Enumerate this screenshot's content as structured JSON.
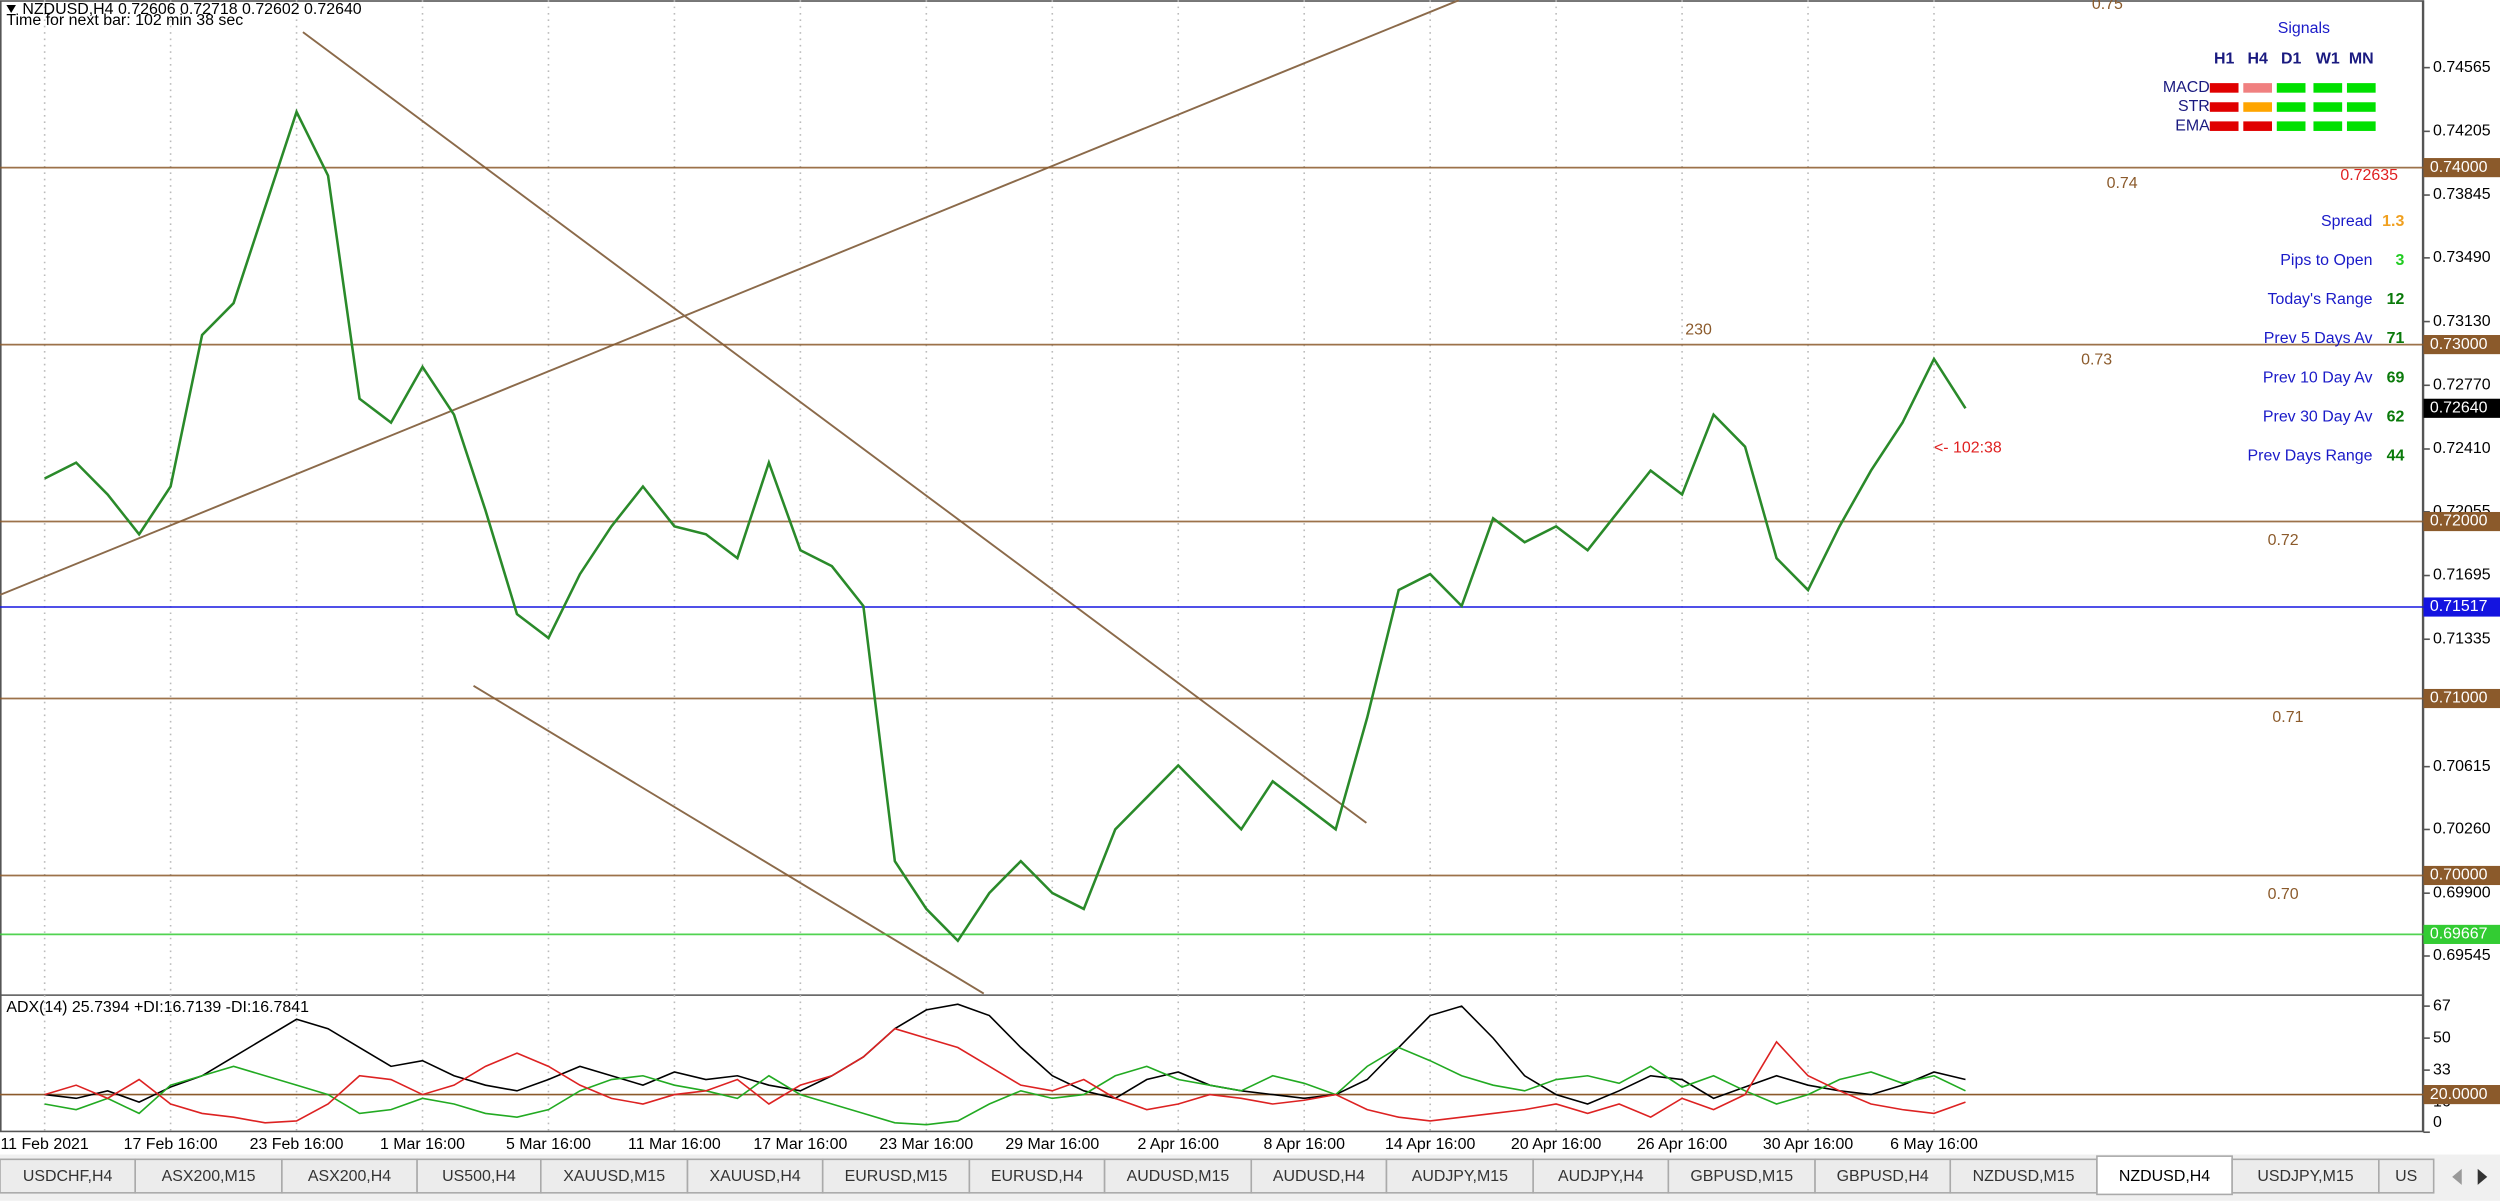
{
  "header": {
    "symbol_line": "NZDUSD,H4  0.72606 0.72718 0.72602 0.72640",
    "timer": "Time for next bar: 102 min 38 sec"
  },
  "chart_data": [
    {
      "type": "line",
      "color": "#2a8a2a",
      "categories": [
        "11 Feb 2021",
        null,
        null,
        null,
        "17 Feb 16:00",
        null,
        null,
        null,
        "23 Feb 16:00",
        null,
        null,
        null,
        "1 Mar 16:00",
        null,
        null,
        null,
        "5 Mar 16:00",
        null,
        null,
        null,
        "11 Mar 16:00",
        null,
        null,
        null,
        "17 Mar 16:00",
        null,
        null,
        null,
        "23 Mar 16:00",
        null,
        null,
        null,
        "29 Mar 16:00",
        null,
        null,
        null,
        "2 Apr 16:00",
        null,
        null,
        null,
        "8 Apr 16:00",
        null,
        null,
        null,
        "14 Apr 16:00",
        null,
        null,
        null,
        "20 Apr 16:00",
        null,
        null,
        null,
        "26 Apr 16:00",
        null,
        null,
        null,
        "30 Apr 16:00",
        null,
        null,
        null,
        "6 May 16:00",
        null
      ],
      "values": [
        0.72243,
        0.72333,
        0.72153,
        0.71928,
        0.72198,
        0.73054,
        0.73234,
        0.73775,
        0.74315,
        0.73955,
        0.72694,
        0.72559,
        0.72874,
        0.72604,
        0.72063,
        0.71477,
        0.71342,
        0.71703,
        0.71973,
        0.72198,
        0.71973,
        0.71928,
        0.71793,
        0.72333,
        0.71838,
        0.71748,
        0.71523,
        0.70081,
        0.69811,
        0.69631,
        0.69901,
        0.70081,
        0.69901,
        0.69811,
        0.70261,
        0.70441,
        0.70622,
        0.70441,
        0.70261,
        0.70532,
        0.70396,
        0.70261,
        0.70892,
        0.71613,
        0.71703,
        0.71523,
        0.72018,
        0.71883,
        0.71973,
        0.71838,
        0.72063,
        0.72288,
        0.72153,
        0.72604,
        0.72423,
        0.71793,
        0.71613,
        0.71973,
        0.72288,
        0.72559,
        0.72919,
        0.7264
      ],
      "ylim": [
        0.69333,
        0.74946
      ],
      "yticks": [
        0.74565,
        0.74205,
        0.73845,
        {
          "value": 0.7349,
          "label": "0.73490"
        },
        {
          "value": 0.7313,
          "label": "0.73130"
        },
        {
          "value": 0.7277,
          "label": "0.72770"
        },
        {
          "value": 0.7241,
          "label": "0.72410"
        },
        0.72055,
        0.71695,
        0.71335,
        0.70615,
        {
          "value": 0.7026,
          "label": "0.70260"
        },
        {
          "value": 0.699,
          "label": "0.69900"
        },
        0.69545
      ],
      "levels": [
        {
          "value": 0.74,
          "label": "0.74000",
          "text": "0.74",
          "color": "#8b5a2b"
        },
        {
          "value": 0.73,
          "label": "0.73000",
          "text": "0.73",
          "color": "#8b5a2b"
        },
        {
          "value": 0.72,
          "label": "0.72000",
          "text": "0.72",
          "color": "#8b5a2b"
        },
        {
          "value": 0.71,
          "label": "0.71000",
          "text": "0.71",
          "color": "#8b5a2b"
        },
        {
          "value": 0.7,
          "label": "0.70000",
          "text": "0.70",
          "color": "#8b5a2b"
        },
        {
          "value": 0.71517,
          "label": "0.71517",
          "color": "#1414e0"
        },
        {
          "value": 0.69667,
          "label": "0.69667",
          "color": "#33cc33"
        }
      ],
      "price_label": {
        "value": 0.7264,
        "label": "0.72640"
      },
      "annotations": [
        "0.75",
        "230",
        "<- 102:38"
      ]
    },
    {
      "type": "line",
      "title": "ADX(14) 25.7394 +DI:16.7139 -DI:16.7841",
      "ylim": [
        0,
        72
      ],
      "yticks": [
        67,
        50,
        33,
        16,
        0
      ],
      "level": {
        "value": 20,
        "label": "20.0000"
      },
      "series": [
        {
          "color": "#000000",
          "values": [
            20,
            18,
            22,
            16,
            24,
            30,
            40,
            50,
            60,
            55,
            45,
            35,
            38,
            30,
            25,
            22,
            28,
            35,
            30,
            25,
            32,
            28,
            30,
            25,
            22,
            30,
            40,
            55,
            65,
            68,
            62,
            45,
            30,
            22,
            18,
            28,
            32,
            25,
            22,
            20,
            18,
            20,
            28,
            45,
            62,
            67,
            50,
            30,
            20,
            15,
            22,
            30,
            28,
            18,
            24,
            30,
            25,
            22,
            20,
            25,
            32,
            28
          ]
        },
        {
          "color": "#22aa22",
          "values": [
            15,
            12,
            18,
            10,
            25,
            30,
            35,
            30,
            25,
            20,
            10,
            12,
            18,
            15,
            10,
            8,
            12,
            22,
            28,
            30,
            25,
            22,
            18,
            30,
            20,
            15,
            10,
            5,
            4,
            6,
            15,
            22,
            18,
            20,
            30,
            35,
            28,
            25,
            22,
            30,
            26,
            20,
            35,
            45,
            38,
            30,
            25,
            22,
            28,
            30,
            26,
            35,
            24,
            30,
            22,
            15,
            20,
            28,
            32,
            26,
            30,
            22
          ]
        },
        {
          "color": "#dd2222",
          "values": [
            20,
            25,
            18,
            28,
            15,
            10,
            8,
            5,
            6,
            15,
            30,
            28,
            20,
            25,
            35,
            42,
            35,
            25,
            18,
            15,
            20,
            22,
            28,
            15,
            25,
            30,
            40,
            55,
            50,
            45,
            35,
            25,
            22,
            28,
            18,
            12,
            15,
            20,
            18,
            15,
            17,
            20,
            12,
            8,
            6,
            8,
            10,
            12,
            15,
            10,
            15,
            8,
            18,
            12,
            20,
            48,
            30,
            22,
            15,
            12,
            10,
            16
          ]
        }
      ]
    }
  ],
  "signals": {
    "title": "Signals",
    "columns": [
      "H1",
      "H4",
      "D1",
      "W1",
      "MN"
    ],
    "rows": [
      {
        "label": "MACD",
        "colors": [
          "#e00000",
          "#f08080",
          "#00e000",
          "#00e000",
          "#00e000"
        ]
      },
      {
        "label": "STR",
        "colors": [
          "#e00000",
          "#ffa500",
          "#00e000",
          "#00e000",
          "#00e000"
        ]
      },
      {
        "label": "EMA",
        "colors": [
          "#e00000",
          "#e00000",
          "#00e000",
          "#00e000",
          "#00e000"
        ]
      }
    ]
  },
  "info": {
    "price": "0.72635",
    "rows": [
      {
        "label": "Spread",
        "value": "1.3",
        "color": "#f0a020"
      },
      {
        "label": "Pips to Open",
        "value": "3",
        "color": "#22cc22"
      },
      {
        "label": "Today's Range",
        "value": "12",
        "color": "#0a7a0a"
      },
      {
        "label": "Prev 5 Days Av",
        "value": "71",
        "color": "#0a7a0a"
      },
      {
        "label": "Prev 10 Day Av",
        "value": "69",
        "color": "#0a7a0a"
      },
      {
        "label": "Prev 30 Day Av",
        "value": "62",
        "color": "#0a7a0a"
      },
      {
        "label": "Prev Days Range",
        "value": "44",
        "color": "#0a7a0a"
      }
    ]
  },
  "tabs": {
    "active": 15,
    "items": [
      "USDCHF,H4",
      "ASX200,M15",
      "ASX200,H4",
      "US500,H4",
      "XAUUSD,M15",
      "XAUUSD,H4",
      "EURUSD,M15",
      "EURUSD,H4",
      "AUDUSD,M15",
      "AUDUSD,H4",
      "AUDJPY,M15",
      "AUDJPY,H4",
      "GBPUSD,M15",
      "GBPUSD,H4",
      "NZDUSD,M15",
      "NZDUSD,H4",
      "USDJPY,M15",
      "US"
    ]
  }
}
